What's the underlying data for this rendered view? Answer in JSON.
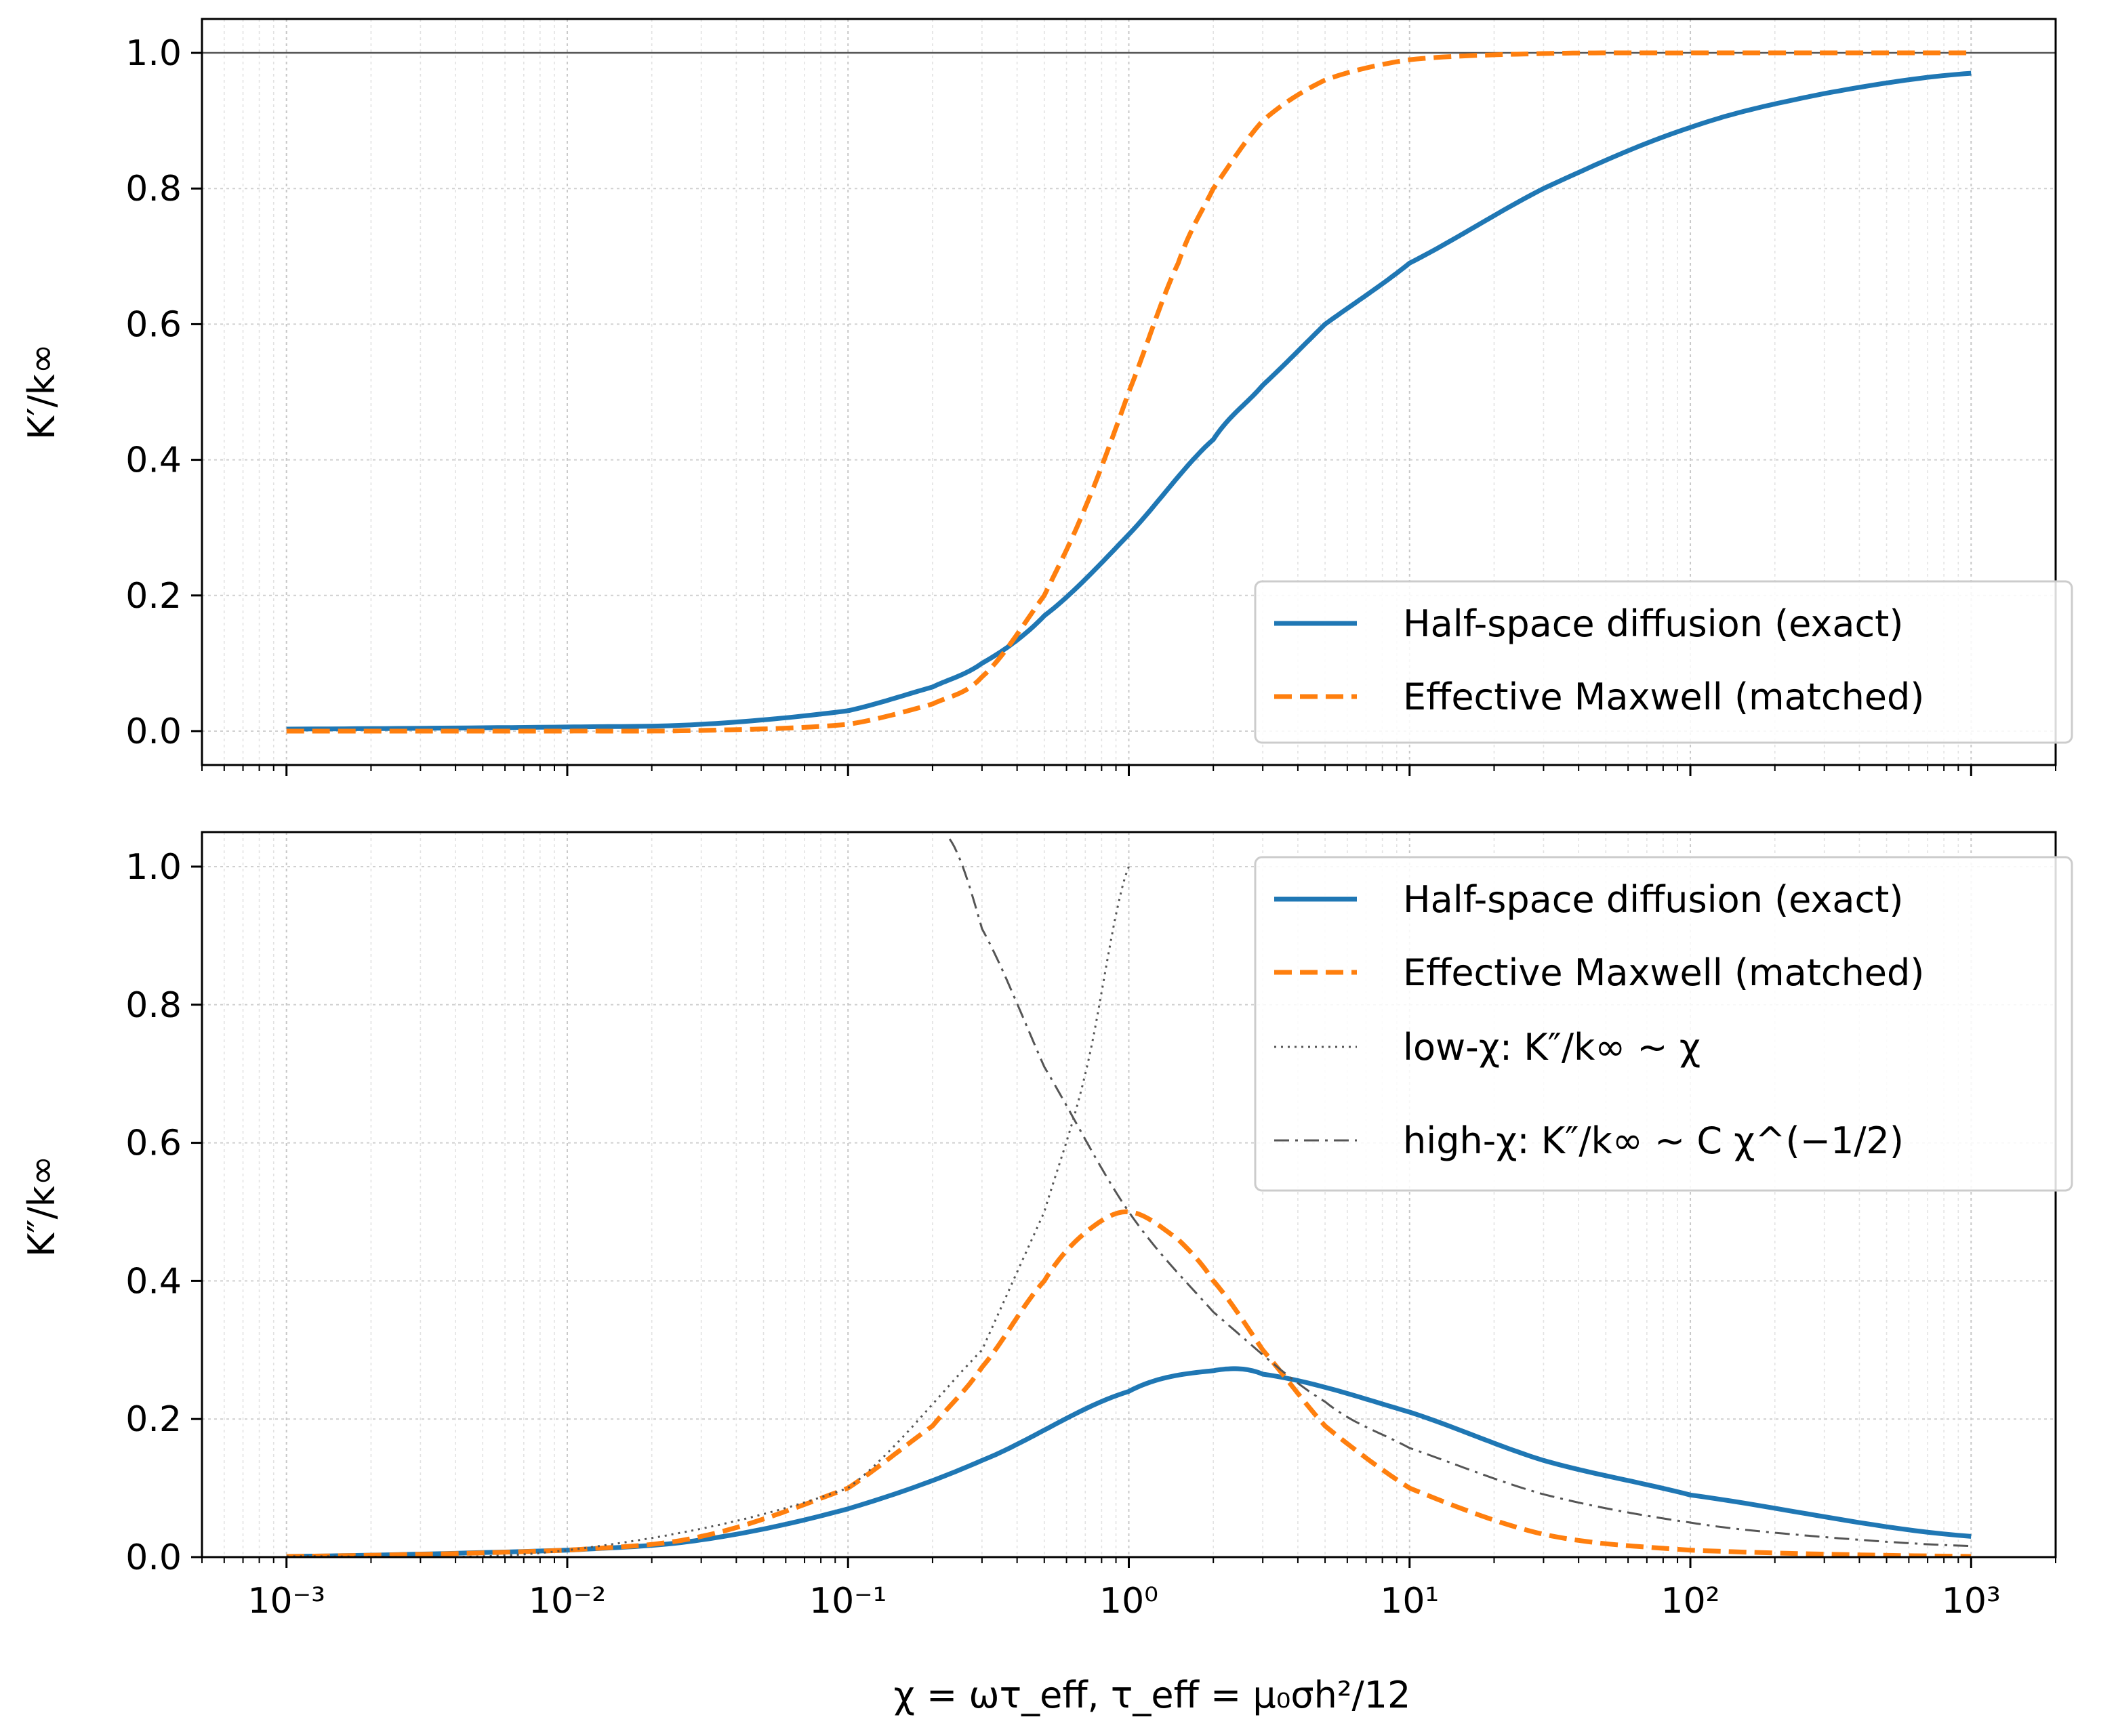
{
  "chart_data": [
    {
      "type": "line",
      "panel": "top",
      "ylabel": "K′/k∞",
      "xscale": "log",
      "xlim": [
        0.0005,
        2000
      ],
      "ylim": [
        -0.05,
        1.05
      ],
      "yticks": [
        "0.0",
        "0.2",
        "0.4",
        "0.6",
        "0.8",
        "1.0"
      ],
      "grid": true,
      "legend_placement": "lower-right",
      "reference_lines": [
        {
          "y": 1.0,
          "color": "#555555"
        }
      ],
      "series": [
        {
          "name": "Half-space diffusion (exact)",
          "color": "#1f77b4",
          "style": "solid",
          "x": [
            0.001,
            0.01,
            0.03,
            0.1,
            0.2,
            0.3,
            0.5,
            1,
            2,
            3,
            5,
            10,
            30,
            100,
            300,
            1000
          ],
          "y": [
            0.003,
            0.006,
            0.01,
            0.03,
            0.065,
            0.1,
            0.17,
            0.29,
            0.43,
            0.51,
            0.6,
            0.69,
            0.8,
            0.89,
            0.94,
            0.97
          ]
        },
        {
          "name": "Effective Maxwell (matched)",
          "color": "#ff7f0e",
          "style": "dashed",
          "x": [
            0.001,
            0.01,
            0.03,
            0.1,
            0.2,
            0.3,
            0.5,
            0.7,
            1,
            1.5,
            2,
            3,
            5,
            10,
            30,
            100,
            1000
          ],
          "y": [
            0.0,
            0.0,
            0.001,
            0.01,
            0.04,
            0.08,
            0.2,
            0.33,
            0.5,
            0.69,
            0.8,
            0.9,
            0.96,
            0.99,
            0.999,
            1.0,
            1.0
          ]
        }
      ]
    },
    {
      "type": "line",
      "panel": "bottom",
      "xlabel": "χ = ωτ_eff,  τ_eff = μ₀σh²/12",
      "ylabel": "K″/k∞",
      "xscale": "log",
      "xlim": [
        0.0005,
        2000
      ],
      "ylim": [
        0.0,
        1.05
      ],
      "xticks": [
        "10⁻³",
        "10⁻²",
        "10⁻¹",
        "10⁰",
        "10¹",
        "10²",
        "10³"
      ],
      "yticks": [
        "0.0",
        "0.2",
        "0.4",
        "0.6",
        "0.8",
        "1.0"
      ],
      "grid": true,
      "legend_placement": "upper-right",
      "series": [
        {
          "name": "Half-space diffusion (exact)",
          "color": "#1f77b4",
          "style": "solid",
          "x": [
            0.001,
            0.01,
            0.03,
            0.1,
            0.3,
            1,
            2,
            3,
            10,
            30,
            100,
            1000
          ],
          "y": [
            0.001,
            0.01,
            0.025,
            0.07,
            0.14,
            0.24,
            0.27,
            0.265,
            0.21,
            0.14,
            0.09,
            0.03
          ]
        },
        {
          "name": "Effective Maxwell (matched)",
          "color": "#ff7f0e",
          "style": "dashed",
          "x": [
            0.001,
            0.01,
            0.03,
            0.1,
            0.2,
            0.3,
            0.5,
            0.7,
            1,
            1.5,
            2,
            3,
            5,
            10,
            30,
            100,
            1000
          ],
          "y": [
            0.001,
            0.01,
            0.03,
            0.1,
            0.19,
            0.275,
            0.4,
            0.47,
            0.5,
            0.46,
            0.4,
            0.3,
            0.19,
            0.1,
            0.033,
            0.01,
            0.001
          ]
        },
        {
          "name": "low-χ: K″/k∞ ~ χ",
          "color": "#555555",
          "style": "dotted",
          "x": [
            0.001,
            0.01,
            0.1,
            0.3,
            0.5,
            0.7,
            1.0
          ],
          "y": [
            0.001,
            0.01,
            0.1,
            0.3,
            0.5,
            0.7,
            1.0
          ]
        },
        {
          "name": "high-χ: K″/k∞ ~ C χ^(−1/2)",
          "color": "#555555",
          "style": "dashdot",
          "x": [
            0.23,
            0.3,
            0.5,
            1,
            2,
            5,
            10,
            30,
            100,
            300,
            1000
          ],
          "y": [
            1.04,
            0.91,
            0.71,
            0.5,
            0.355,
            0.225,
            0.158,
            0.091,
            0.05,
            0.029,
            0.016
          ]
        }
      ]
    }
  ]
}
